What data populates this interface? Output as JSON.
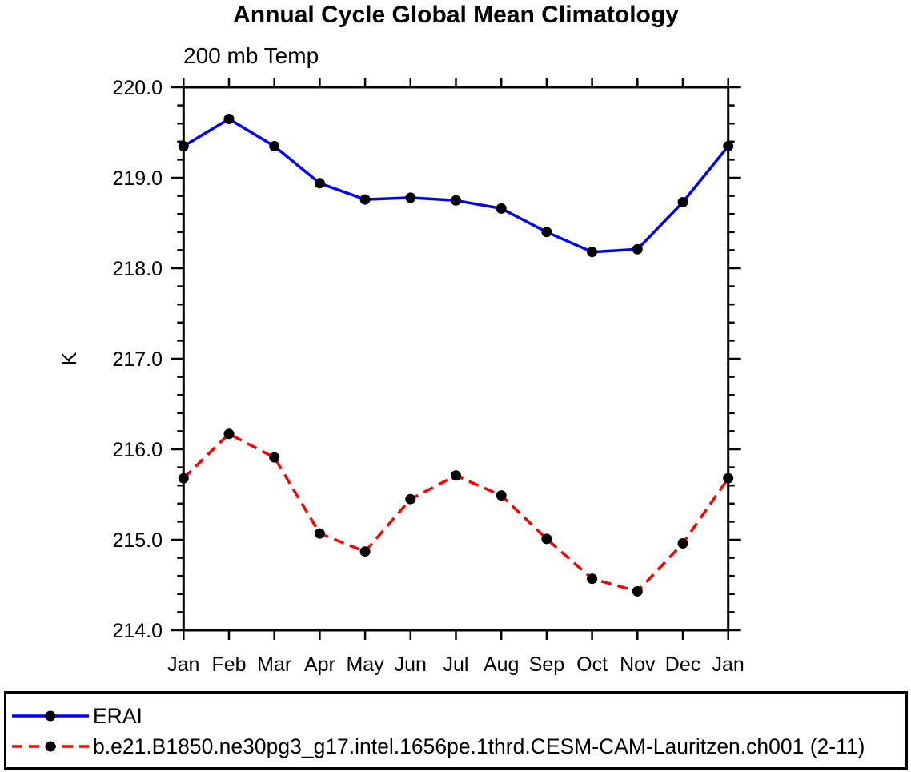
{
  "title": "Annual Cycle Global Mean Climatology",
  "subtitle": "200 mb Temp",
  "chart_data": {
    "type": "line",
    "title": "Annual Cycle Global Mean Climatology",
    "subtitle": "200 mb Temp",
    "ylabel": "K",
    "ylim": [
      214.0,
      220.0
    ],
    "y_major_step": 1.0,
    "y_minor_step": 0.2,
    "y_tick_format_decimals": 1,
    "grid": false,
    "legend_position": "bottom-box",
    "categories": [
      "Jan",
      "Feb",
      "Mar",
      "Apr",
      "May",
      "Jun",
      "Jul",
      "Aug",
      "Sep",
      "Oct",
      "Nov",
      "Dec",
      "Jan"
    ],
    "series": [
      {
        "name": "ERAI",
        "line_color": "#0000ff",
        "line_style": "solid",
        "marker": "filled-circle",
        "marker_color": "#000000",
        "values": [
          219.35,
          219.65,
          219.35,
          218.94,
          218.76,
          218.78,
          218.75,
          218.66,
          218.4,
          218.18,
          218.21,
          218.73,
          219.35
        ]
      },
      {
        "name": "b.e21.B1850.ne30pg3_g17.intel.1656pe.1thrd.CESM-CAM-Lauritzen.ch001 (2-11)",
        "line_color": "#ff0000",
        "line_style": "dashed",
        "marker": "filled-circle",
        "marker_color": "#000000",
        "values": [
          215.68,
          216.17,
          215.91,
          215.07,
          214.87,
          215.45,
          215.71,
          215.49,
          215.01,
          214.57,
          214.43,
          214.96,
          215.68
        ]
      }
    ]
  }
}
